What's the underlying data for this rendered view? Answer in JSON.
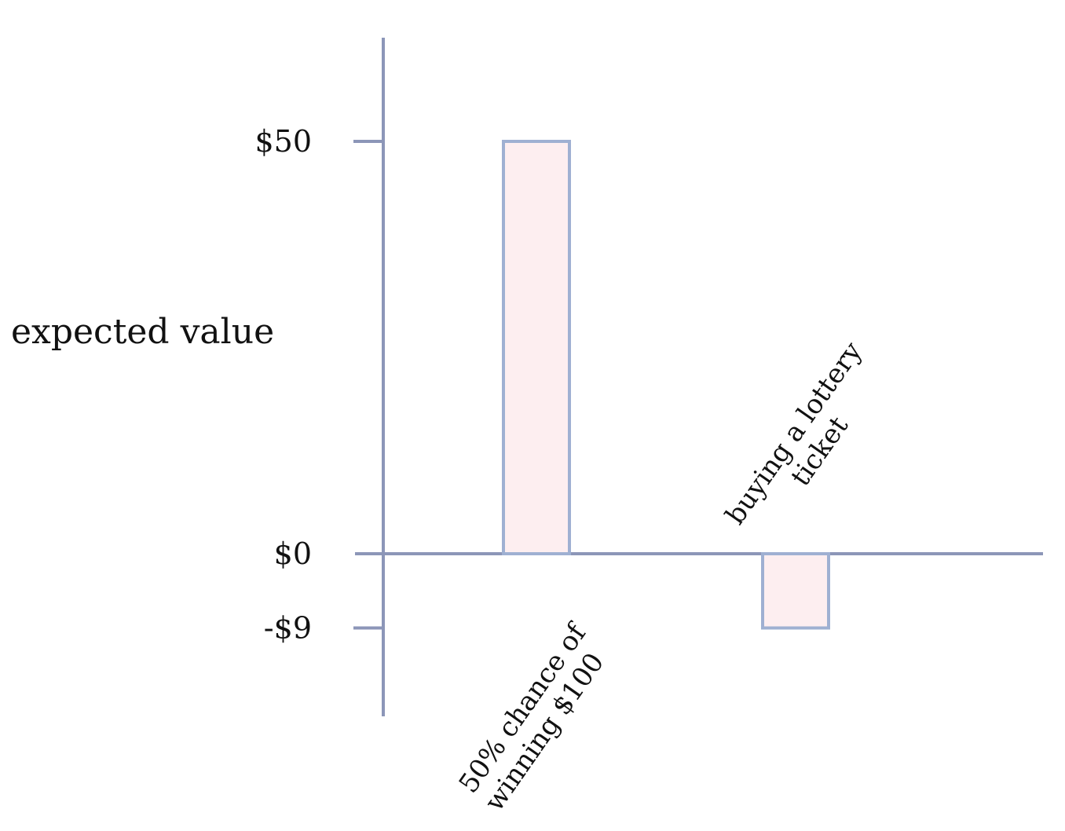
{
  "chart_data": {
    "type": "bar",
    "categories": [
      "50% chance of winning $100",
      "buying a lottery ticket"
    ],
    "category_label_lines": [
      [
        "50% chance of",
        "winning $100"
      ],
      [
        "buying a lottery",
        "ticket"
      ]
    ],
    "values": [
      50,
      -9
    ],
    "ylabel": "expected value",
    "xlabel": "",
    "yticks": [
      {
        "value": 50,
        "label": "$50"
      },
      {
        "value": 0,
        "label": "$0"
      },
      {
        "value": -9,
        "label": "-$9"
      }
    ],
    "ylim": [
      -19,
      62
    ],
    "grid": false,
    "legend": "none",
    "colors": {
      "axis": "#8c96b8",
      "bar_fill": "#fdeef0",
      "bar_stroke": "#9fb0d2",
      "text": "#111111"
    }
  }
}
